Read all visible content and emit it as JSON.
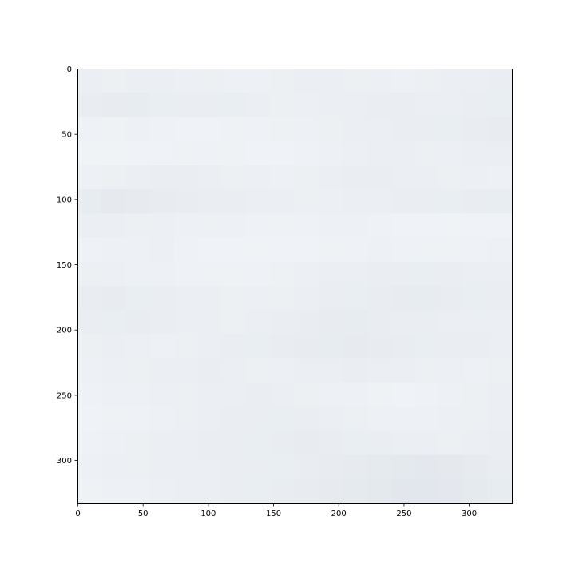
{
  "chart_data": {
    "type": "heatmap",
    "title": "",
    "xlabel": "",
    "ylabel": "",
    "xlim": [
      0,
      333
    ],
    "ylim": [
      333,
      0
    ],
    "x_ticks": [
      0,
      50,
      100,
      150,
      200,
      250,
      300
    ],
    "y_ticks": [
      0,
      50,
      100,
      150,
      200,
      250,
      300
    ],
    "x_tick_labels": [
      "0",
      "50",
      "100",
      "150",
      "200",
      "250",
      "300"
    ],
    "y_tick_labels": [
      "0",
      "50",
      "100",
      "150",
      "200",
      "250",
      "300"
    ],
    "grid": false,
    "colors": {
      "light": "#f3f6f9",
      "mid": "#eaeef2",
      "dark": "#dde2e9",
      "axis": "#000000"
    },
    "image_description_values": {
      "rows": 18,
      "cols": 18,
      "values": [
        [
          0.45,
          0.4,
          0.42,
          0.44,
          0.38,
          0.4,
          0.35,
          0.36,
          0.4,
          0.42,
          0.45,
          0.4,
          0.38,
          0.36,
          0.4,
          0.42,
          0.45,
          0.48
        ],
        [
          0.55,
          0.58,
          0.6,
          0.52,
          0.48,
          0.5,
          0.52,
          0.45,
          0.4,
          0.38,
          0.42,
          0.45,
          0.48,
          0.5,
          0.46,
          0.44,
          0.48,
          0.52
        ],
        [
          0.3,
          0.28,
          0.32,
          0.3,
          0.25,
          0.22,
          0.28,
          0.3,
          0.34,
          0.36,
          0.4,
          0.42,
          0.45,
          0.48,
          0.5,
          0.52,
          0.55,
          0.58
        ],
        [
          0.2,
          0.18,
          0.22,
          0.25,
          0.28,
          0.3,
          0.26,
          0.22,
          0.25,
          0.3,
          0.35,
          0.38,
          0.42,
          0.45,
          0.4,
          0.38,
          0.42,
          0.45
        ],
        [
          0.35,
          0.4,
          0.45,
          0.5,
          0.48,
          0.44,
          0.4,
          0.38,
          0.36,
          0.4,
          0.44,
          0.48,
          0.5,
          0.45,
          0.42,
          0.4,
          0.38,
          0.36
        ],
        [
          0.6,
          0.65,
          0.62,
          0.58,
          0.55,
          0.5,
          0.48,
          0.45,
          0.42,
          0.4,
          0.38,
          0.42,
          0.45,
          0.48,
          0.5,
          0.52,
          0.54,
          0.56
        ],
        [
          0.45,
          0.42,
          0.4,
          0.38,
          0.36,
          0.34,
          0.32,
          0.3,
          0.28,
          0.3,
          0.32,
          0.35,
          0.3,
          0.25,
          0.22,
          0.2,
          0.22,
          0.25
        ],
        [
          0.3,
          0.32,
          0.35,
          0.38,
          0.3,
          0.25,
          0.22,
          0.2,
          0.22,
          0.25,
          0.28,
          0.3,
          0.32,
          0.3,
          0.28,
          0.26,
          0.3,
          0.35
        ],
        [
          0.4,
          0.38,
          0.35,
          0.32,
          0.3,
          0.28,
          0.26,
          0.3,
          0.34,
          0.38,
          0.42,
          0.45,
          0.48,
          0.5,
          0.52,
          0.48,
          0.45,
          0.42
        ],
        [
          0.55,
          0.58,
          0.52,
          0.48,
          0.45,
          0.42,
          0.4,
          0.38,
          0.4,
          0.44,
          0.48,
          0.52,
          0.55,
          0.58,
          0.6,
          0.55,
          0.52,
          0.5
        ],
        [
          0.5,
          0.52,
          0.55,
          0.48,
          0.45,
          0.42,
          0.4,
          0.45,
          0.5,
          0.55,
          0.58,
          0.6,
          0.55,
          0.5,
          0.48,
          0.46,
          0.44,
          0.45
        ],
        [
          0.4,
          0.42,
          0.38,
          0.36,
          0.4,
          0.44,
          0.48,
          0.52,
          0.55,
          0.58,
          0.6,
          0.62,
          0.58,
          0.55,
          0.52,
          0.5,
          0.48,
          0.46
        ],
        [
          0.35,
          0.38,
          0.4,
          0.42,
          0.45,
          0.48,
          0.44,
          0.4,
          0.38,
          0.42,
          0.45,
          0.48,
          0.45,
          0.42,
          0.4,
          0.38,
          0.36,
          0.4
        ],
        [
          0.3,
          0.32,
          0.35,
          0.38,
          0.4,
          0.42,
          0.45,
          0.48,
          0.44,
          0.4,
          0.36,
          0.32,
          0.28,
          0.25,
          0.3,
          0.35,
          0.4,
          0.42
        ],
        [
          0.25,
          0.28,
          0.3,
          0.35,
          0.4,
          0.45,
          0.48,
          0.5,
          0.52,
          0.48,
          0.44,
          0.4,
          0.36,
          0.32,
          0.35,
          0.38,
          0.4,
          0.42
        ],
        [
          0.3,
          0.35,
          0.4,
          0.42,
          0.45,
          0.48,
          0.5,
          0.52,
          0.55,
          0.58,
          0.55,
          0.52,
          0.48,
          0.45,
          0.42,
          0.4,
          0.44,
          0.48
        ],
        [
          0.35,
          0.38,
          0.4,
          0.42,
          0.44,
          0.46,
          0.48,
          0.5,
          0.52,
          0.55,
          0.58,
          0.62,
          0.68,
          0.72,
          0.75,
          0.7,
          0.62,
          0.55
        ],
        [
          0.28,
          0.32,
          0.35,
          0.38,
          0.42,
          0.45,
          0.48,
          0.52,
          0.55,
          0.58,
          0.62,
          0.68,
          0.72,
          0.78,
          0.8,
          0.75,
          0.68,
          0.6
        ]
      ]
    }
  }
}
